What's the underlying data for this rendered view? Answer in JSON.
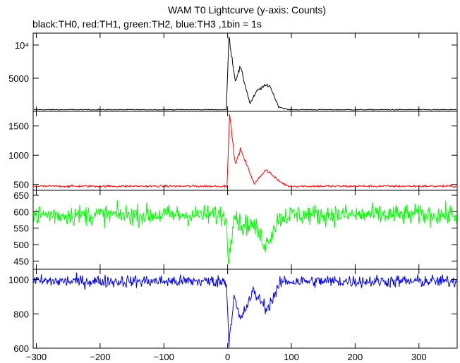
{
  "chart_data": {
    "type": "line",
    "title": "WAM T0 Lightcurve (y-axis: Counts)",
    "subtitle": "black:TH0, red:TH1, green:TH2, blue:TH3 ,1bin = 1s",
    "xlabel": "",
    "ylabel": "",
    "xlim": [
      -305,
      360
    ],
    "xticks": [
      -300,
      -200,
      -100,
      0,
      100,
      200,
      300
    ],
    "grid": false,
    "panels": [
      {
        "name": "TH0",
        "color": "#000000",
        "ylim": [
          0,
          11800
        ],
        "yticks": [
          5000,
          10000
        ],
        "ytick_labels": [
          "5000",
          "10⁴"
        ],
        "baseline": 250,
        "noise": 60,
        "features": [
          {
            "x": 2,
            "y": 11300
          },
          {
            "x": 12,
            "y": 4600
          },
          {
            "x": 20,
            "y": 6700
          },
          {
            "x": 35,
            "y": 1200
          },
          {
            "x": 47,
            "y": 3200
          },
          {
            "x": 60,
            "y": 3900
          },
          {
            "x": 66,
            "y": 3900
          },
          {
            "x": 80,
            "y": 700
          }
        ]
      },
      {
        "name": "TH1",
        "color": "#ff0000",
        "ylim": [
          400,
          1750
        ],
        "yticks": [
          500,
          1000,
          1500
        ],
        "ytick_labels": [
          "500",
          "1000",
          "1500"
        ],
        "baseline": 470,
        "noise": 18,
        "features": [
          {
            "x": 3,
            "y": 1700
          },
          {
            "x": 12,
            "y": 840
          },
          {
            "x": 20,
            "y": 1100
          },
          {
            "x": 42,
            "y": 510
          },
          {
            "x": 60,
            "y": 760
          },
          {
            "x": 80,
            "y": 560
          }
        ]
      },
      {
        "name": "TH2",
        "color": "#00ff00",
        "ylim": [
          425,
          665
        ],
        "yticks": [
          450,
          500,
          550,
          600,
          650
        ],
        "ytick_labels": [
          "450",
          "500",
          "550",
          "600",
          "650"
        ],
        "baseline": 590,
        "noise": 30,
        "features": [
          {
            "x": 1,
            "y": 450
          },
          {
            "x": 10,
            "y": 600
          },
          {
            "x": 20,
            "y": 560
          },
          {
            "x": 40,
            "y": 560
          },
          {
            "x": 60,
            "y": 500
          },
          {
            "x": 80,
            "y": 580
          }
        ]
      },
      {
        "name": "TH3",
        "color": "#0000ff",
        "ylim": [
          600,
          1060
        ],
        "yticks": [
          600,
          800,
          1000
        ],
        "ytick_labels": [
          "600",
          "800",
          "1000"
        ],
        "baseline": 990,
        "noise": 35,
        "features": [
          {
            "x": 2,
            "y": 640
          },
          {
            "x": 10,
            "y": 900
          },
          {
            "x": 20,
            "y": 760
          },
          {
            "x": 40,
            "y": 930
          },
          {
            "x": 62,
            "y": 830
          },
          {
            "x": 85,
            "y": 990
          }
        ]
      }
    ]
  }
}
